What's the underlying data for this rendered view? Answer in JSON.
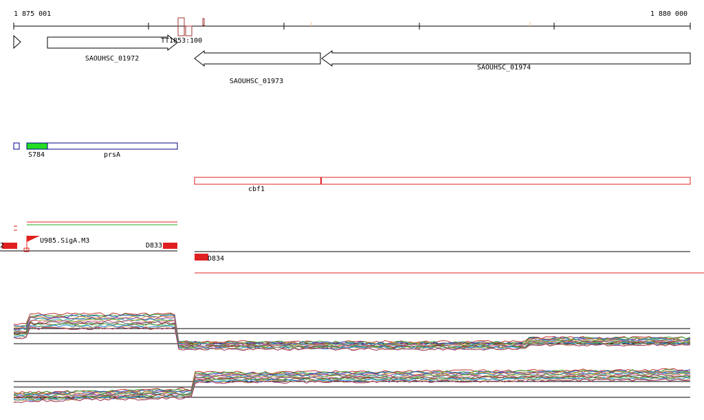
{
  "ruler": {
    "start": "1 875 001",
    "end": "1 880 000"
  },
  "terminator": "TT1853:100",
  "genes": [
    "SAOUHSC_01972",
    "SAOUHSC_01973",
    "SAOUHSC_01974"
  ],
  "operons": {
    "small": "S784",
    "gene": "prsA",
    "red": "cbf1"
  },
  "promoters": {
    "left": "2",
    "sigma": "U985.SigA.M3",
    "d833": "D833",
    "d834": "D834"
  }
}
